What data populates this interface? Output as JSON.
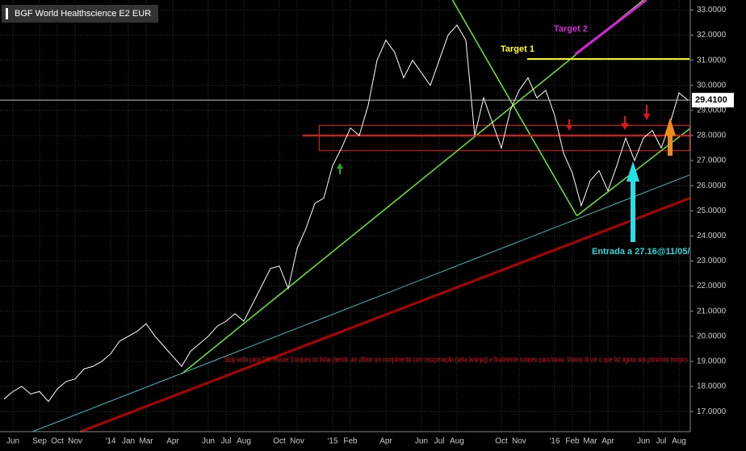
{
  "chart_data": {
    "type": "line",
    "title": "BGF World Healthscience E2 EUR",
    "categories": [
      null,
      "Jun",
      null,
      null,
      "Sep",
      null,
      "Oct",
      null,
      "Nov",
      null,
      null,
      null,
      "'14",
      null,
      "Jan",
      null,
      "Mar",
      null,
      null,
      "Apr",
      null,
      null,
      null,
      "Jun",
      null,
      "Jul",
      null,
      "Aug",
      null,
      null,
      null,
      "Oct",
      null,
      "Nov",
      null,
      null,
      null,
      "'15",
      null,
      "Feb",
      null,
      null,
      null,
      "Apr",
      null,
      null,
      null,
      "Jun",
      null,
      "Jul",
      null,
      "Aug",
      null,
      null,
      null,
      null,
      "Oct",
      null,
      "Nov",
      null,
      null,
      null,
      "'16",
      null,
      "Feb",
      null,
      "Mar",
      null,
      "Apr",
      null,
      null,
      null,
      "Jun",
      null,
      "Jul",
      null,
      "Aug",
      null
    ],
    "series": [
      {
        "name": "BGF World Healthscience E2 EUR",
        "color": "#ffffff",
        "values": [
          17.5,
          17.8,
          18.0,
          17.7,
          17.8,
          17.4,
          17.9,
          18.2,
          18.3,
          18.7,
          18.8,
          19.0,
          19.3,
          19.8,
          20.0,
          20.2,
          20.5,
          20.0,
          19.6,
          19.2,
          18.8,
          19.4,
          19.7,
          20.0,
          20.4,
          20.6,
          20.9,
          20.6,
          21.3,
          22.0,
          22.7,
          22.8,
          21.9,
          23.5,
          24.3,
          25.3,
          25.5,
          26.8,
          27.5,
          28.3,
          28.0,
          29.2,
          31.0,
          31.8,
          31.3,
          30.3,
          31.0,
          30.5,
          30.0,
          31.0,
          32.0,
          32.4,
          31.8,
          28.0,
          29.5,
          28.5,
          27.5,
          29.0,
          29.8,
          30.3,
          29.5,
          29.8,
          28.8,
          27.3,
          26.5,
          25.2,
          26.2,
          26.6,
          25.8,
          26.8,
          27.9,
          27.0,
          27.9,
          28.2,
          27.5,
          28.5,
          29.7,
          29.41
        ]
      }
    ],
    "last_price": {
      "value": 29.41,
      "label": "29.4100"
    },
    "ylim": [
      16.2,
      33.4
    ],
    "yticks": [
      {
        "value": 17,
        "label": "17.0000"
      },
      {
        "value": 18,
        "label": "18.0000"
      },
      {
        "value": 19,
        "label": "19.0000"
      },
      {
        "value": 20,
        "label": "20.0000"
      },
      {
        "value": 21,
        "label": "21.0000"
      },
      {
        "value": 22,
        "label": "22.0000"
      },
      {
        "value": 23,
        "label": "23.0000"
      },
      {
        "value": 24,
        "label": "24.0000"
      },
      {
        "value": 25,
        "label": "25.0000"
      },
      {
        "value": 26,
        "label": "26.0000"
      },
      {
        "value": 27,
        "label": "27.0000"
      },
      {
        "value": 28,
        "label": "28.0000"
      },
      {
        "value": 29,
        "label": "29.0000"
      },
      {
        "value": 30,
        "label": "30.0000"
      },
      {
        "value": 31,
        "label": "31.0000"
      },
      {
        "value": 32,
        "label": "32.0000"
      },
      {
        "value": 33,
        "label": "33.0000"
      }
    ],
    "grid": true,
    "trendlines": [
      {
        "color": "#66ee22",
        "width": 1.5,
        "points": [
          [
            20,
            18.5
          ],
          [
            72,
            33.4
          ]
        ]
      },
      {
        "color": "#66ee22",
        "width": 1.5,
        "points": [
          [
            50.5,
            33.4
          ],
          [
            64.5,
            24.8
          ]
        ]
      },
      {
        "color": "#66ee22",
        "width": 1.5,
        "points": [
          [
            64.5,
            24.8
          ],
          [
            77.2,
            28.27
          ]
        ]
      },
      {
        "color": "#3fb8b8",
        "width": 1,
        "points": [
          [
            3.2,
            16.2
          ],
          [
            77.2,
            26.43
          ]
        ]
      },
      {
        "color": "#b00000",
        "width": 3,
        "points": [
          [
            8.6,
            16.2
          ],
          [
            77.2,
            25.5
          ]
        ]
      },
      {
        "color": "#ee1111",
        "width": 2,
        "points": [
          [
            33.6,
            28.0
          ],
          [
            77.2,
            28.0
          ]
        ]
      },
      {
        "color": "#ffff22",
        "width": 2,
        "points": [
          [
            58.9,
            31.05
          ],
          [
            77.2,
            31.05
          ]
        ]
      },
      {
        "color": "#dd22dd",
        "width": 3,
        "points": [
          [
            64.3,
            31.23
          ],
          [
            72.3,
            33.4
          ]
        ]
      }
    ],
    "zone": {
      "color": "#ee1111",
      "from": 35.5,
      "to": 77.2,
      "low": 27.4,
      "high": 28.4
    },
    "annotations": {
      "target1": "Target 1",
      "target2": "Target 2",
      "entry": "Entrada a 27.16@11/05/",
      "note": "Stop solto para 20€. Houve 3 toques na linha (sendo um último um rompimento com recuperação (seta laranja)) e finalmente rompeu para baixo. Vamos lá ver o que faz agora nos próximos tempos"
    }
  }
}
